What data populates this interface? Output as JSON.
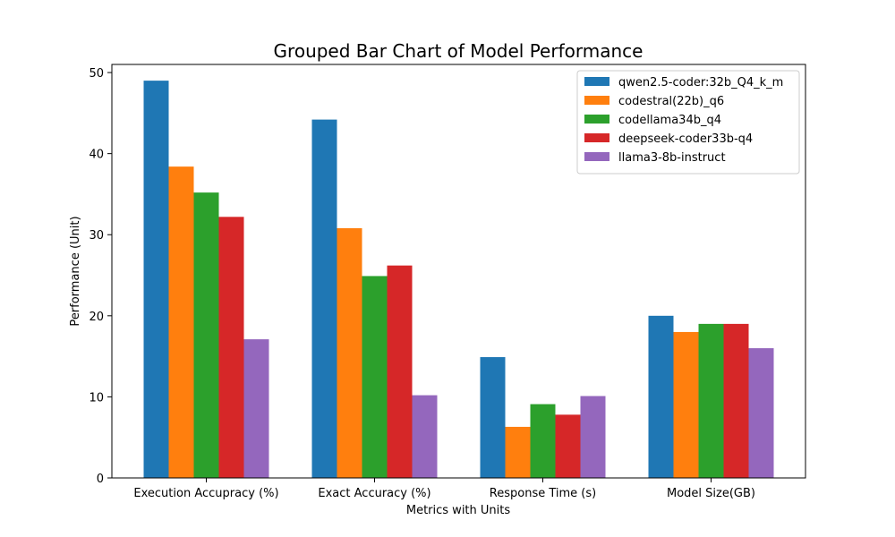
{
  "chart_data": {
    "type": "bar",
    "title": "Grouped Bar Chart of Model Performance",
    "xlabel": "Metrics with Units",
    "ylabel": "Performance (Unit)",
    "categories": [
      "Execution Accupracy (%)",
      "Exact Accuracy (%)",
      "Response Time (s)",
      "Model Size(GB)"
    ],
    "ylim": [
      0,
      51
    ],
    "yticks": [
      0,
      10,
      20,
      30,
      40,
      50
    ],
    "grid": false,
    "legend_position": "top-right",
    "series": [
      {
        "name": "qwen2.5-coder:32b_Q4_k_m",
        "color": "#1f77b4",
        "values": [
          49.0,
          44.2,
          14.9,
          20.0
        ]
      },
      {
        "name": "codestral(22b)_q6",
        "color": "#ff7f0e",
        "values": [
          38.4,
          30.8,
          6.3,
          18.0
        ]
      },
      {
        "name": "codellama34b_q4",
        "color": "#2ca02c",
        "values": [
          35.2,
          24.9,
          9.1,
          19.0
        ]
      },
      {
        "name": "deepseek-coder33b-q4",
        "color": "#d62728",
        "values": [
          32.2,
          26.2,
          7.8,
          19.0
        ]
      },
      {
        "name": "llama3-8b-instruct",
        "color": "#9467bd",
        "values": [
          17.1,
          10.2,
          10.1,
          16.0
        ]
      }
    ]
  }
}
